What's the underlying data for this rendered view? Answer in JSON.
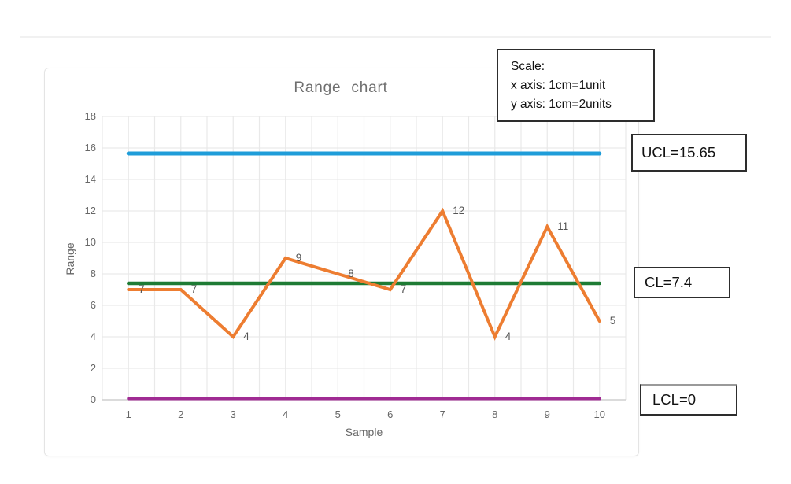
{
  "chart_data": {
    "type": "line",
    "title": "Range chart",
    "xlabel": "Sample",
    "ylabel": "Range",
    "categories": [
      1,
      2,
      3,
      4,
      5,
      6,
      7,
      8,
      9,
      10
    ],
    "values": [
      7,
      7,
      4,
      9,
      8,
      7,
      12,
      4,
      11,
      5
    ],
    "ylim": [
      0,
      18
    ],
    "ytick_step": 2,
    "xlim": [
      0.5,
      10.5
    ],
    "grid": true,
    "legend_position": "none",
    "series_color": "#ED7D31",
    "control_lines": [
      {
        "name": "UCL",
        "value": 15.65,
        "color": "#1F9DD9"
      },
      {
        "name": "CL",
        "value": 7.4,
        "color": "#1E7B34"
      },
      {
        "name": "LCL",
        "value": 0,
        "color": "#A02B93"
      }
    ]
  },
  "annotations": {
    "scale_box": {
      "line1": "Scale:",
      "line2": "x axis: 1cm=1unit",
      "line3": "y axis: 1cm=2units"
    },
    "ucl_box": "UCL=15.65",
    "cl_box": "CL=7.4",
    "lcl_box": "LCL=0"
  },
  "colors": {
    "gridline": "#e9e9e9",
    "axis_line": "#cfcfcf",
    "tick_text": "#666666",
    "title_text": "#6f6f6f",
    "point_label_text": "#555555"
  }
}
